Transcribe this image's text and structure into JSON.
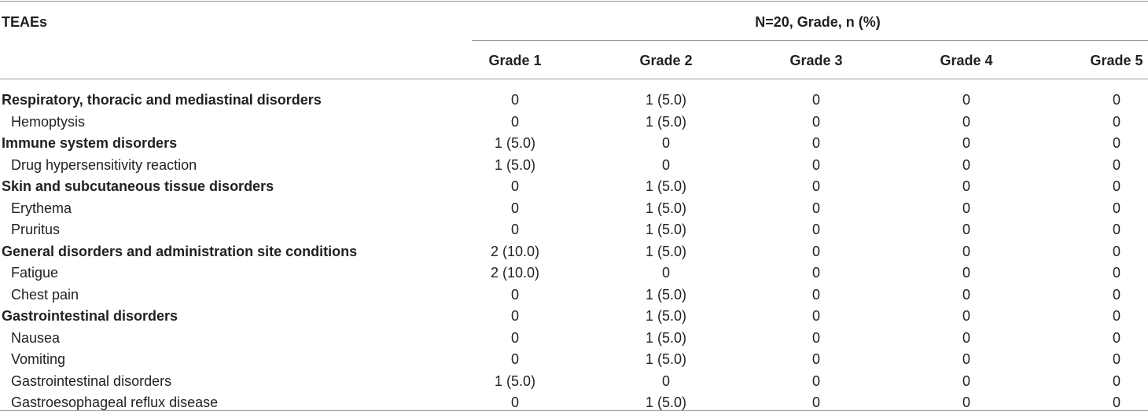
{
  "table": {
    "header": {
      "first": "TEAEs",
      "span": "N=20, Grade, n (%)",
      "columns": [
        "Grade 1",
        "Grade 2",
        "Grade 3",
        "Grade 4",
        "Grade 5"
      ]
    },
    "groups": [
      {
        "name": "Respiratory, thoracic and mediastinal disorders",
        "values": [
          "0",
          "1 (5.0)",
          "0",
          "0",
          "0"
        ],
        "terms": [
          {
            "name": "Hemoptysis",
            "values": [
              "0",
              "1 (5.0)",
              "0",
              "0",
              "0"
            ]
          }
        ]
      },
      {
        "name": "Immune system disorders",
        "values": [
          "1 (5.0)",
          "0",
          "0",
          "0",
          "0"
        ],
        "terms": [
          {
            "name": "Drug hypersensitivity reaction",
            "values": [
              "1 (5.0)",
              "0",
              "0",
              "0",
              "0"
            ]
          }
        ]
      },
      {
        "name": "Skin and subcutaneous tissue disorders",
        "values": [
          "0",
          "1 (5.0)",
          "0",
          "0",
          "0"
        ],
        "terms": [
          {
            "name": "Erythema",
            "values": [
              "0",
              "1 (5.0)",
              "0",
              "0",
              "0"
            ]
          },
          {
            "name": "Pruritus",
            "values": [
              "0",
              "1 (5.0)",
              "0",
              "0",
              "0"
            ]
          }
        ]
      },
      {
        "name": "General disorders and administration site conditions",
        "values": [
          "2 (10.0)",
          "1 (5.0)",
          "0",
          "0",
          "0"
        ],
        "terms": [
          {
            "name": "Fatigue",
            "values": [
              "2 (10.0)",
              "0",
              "0",
              "0",
              "0"
            ]
          },
          {
            "name": "Chest pain",
            "values": [
              "0",
              "1 (5.0)",
              "0",
              "0",
              "0"
            ]
          }
        ]
      },
      {
        "name": "Gastrointestinal disorders",
        "values": [
          "0",
          "1 (5.0)",
          "0",
          "0",
          "0"
        ],
        "terms": [
          {
            "name": "Nausea",
            "values": [
              "0",
              "1 (5.0)",
              "0",
              "0",
              "0"
            ]
          },
          {
            "name": "Vomiting",
            "values": [
              "0",
              "1 (5.0)",
              "0",
              "0",
              "0"
            ]
          },
          {
            "name": "Gastrointestinal disorders",
            "values": [
              "1 (5.0)",
              "0",
              "0",
              "0",
              "0"
            ]
          },
          {
            "name": "Gastroesophageal reflux disease",
            "values": [
              "0",
              "1 (5.0)",
              "0",
              "0",
              "0"
            ]
          }
        ]
      }
    ]
  }
}
